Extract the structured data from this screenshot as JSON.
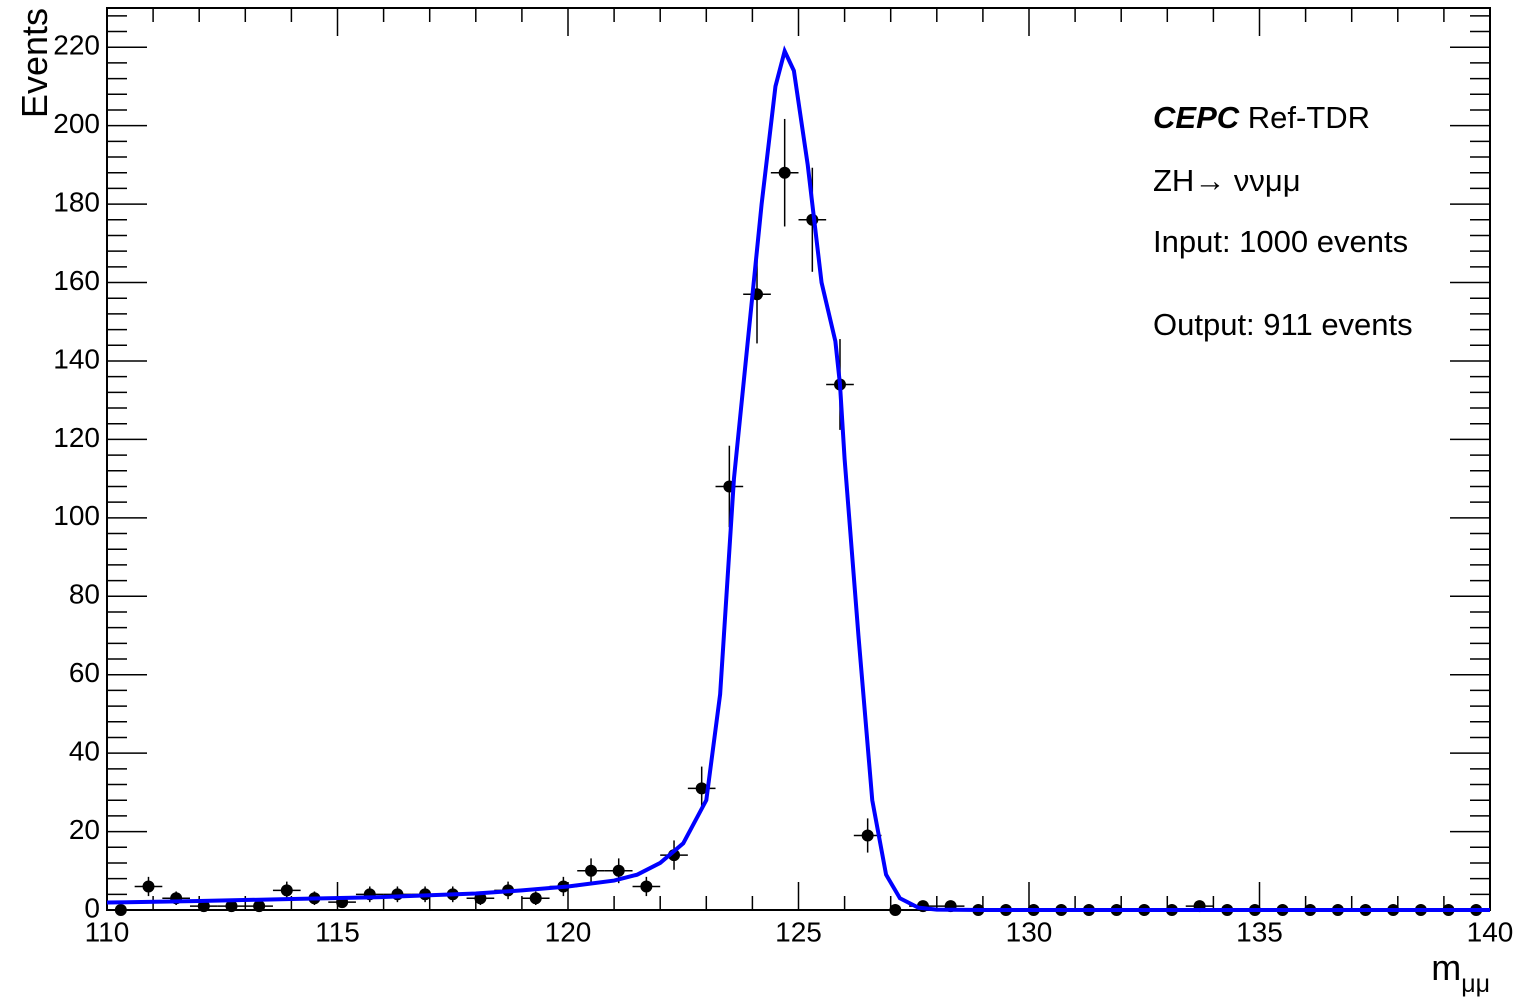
{
  "chart_data": {
    "type": "histogram",
    "bins": [
      110,
      110.6,
      111.2,
      111.8,
      112.4,
      113,
      113.6,
      114.2,
      114.8,
      115.4,
      116,
      116.6,
      117.2,
      117.8,
      118.4,
      119,
      119.6,
      120.2,
      120.8,
      121.4,
      122,
      122.6,
      123.2,
      123.8,
      124.4,
      125,
      125.6,
      126.2,
      126.8,
      127.4,
      128,
      128.6,
      129.2,
      129.8,
      130.4,
      131,
      131.6,
      132.2,
      132.8,
      133.4,
      134,
      134.6,
      135.2,
      135.8,
      136.4,
      137,
      137.6,
      138.2,
      138.8,
      139.4,
      140
    ],
    "values": [
      0,
      6,
      3,
      1,
      1,
      1,
      5,
      3,
      2,
      4,
      4,
      4,
      4,
      3,
      5,
      3,
      6,
      10,
      10,
      6,
      14,
      31,
      108,
      157,
      188,
      176,
      134,
      19,
      0,
      1,
      1,
      0,
      0,
      0,
      0,
      0,
      0,
      0,
      0,
      1,
      0,
      0,
      0,
      0,
      0,
      0,
      0,
      0,
      0,
      0
    ],
    "errors": [
      0,
      2.45,
      1.73,
      1,
      1,
      1,
      2.24,
      1.73,
      1.41,
      2,
      2,
      2,
      2,
      1.73,
      2.24,
      1.73,
      2.45,
      3.16,
      3.16,
      2.45,
      3.74,
      5.57,
      10.39,
      12.53,
      13.71,
      13.27,
      11.58,
      4.36,
      0,
      1,
      1,
      0,
      0,
      0,
      0,
      0,
      0,
      0,
      0,
      1,
      0,
      0,
      0,
      0,
      0,
      0,
      0,
      0,
      0,
      0
    ],
    "color": "#000000",
    "fit": {
      "color": "#0000ff",
      "x": [
        110,
        112,
        114,
        116,
        118,
        119,
        120,
        121,
        121.5,
        122,
        122.5,
        123,
        123.3,
        123.6,
        123.9,
        124.2,
        124.5,
        124.7,
        124.9,
        125.2,
        125.5,
        125.8,
        125.9,
        126.0,
        126.3,
        126.6,
        126.9,
        127.2,
        127.6,
        128,
        129,
        140
      ],
      "y": [
        1.9,
        2.3,
        2.8,
        3.3,
        4.2,
        5,
        6,
        7.5,
        9,
        12,
        17,
        28,
        55,
        110,
        145,
        180,
        210,
        219,
        214,
        190,
        160,
        145,
        134,
        115,
        70,
        28,
        9,
        3,
        0.6,
        0.1,
        0,
        0
      ]
    },
    "xlim": [
      110,
      140
    ],
    "ylim": [
      0,
      230
    ],
    "xticks": [
      110,
      115,
      120,
      125,
      130,
      135,
      140
    ],
    "yticks": [
      0,
      20,
      40,
      60,
      80,
      100,
      120,
      140,
      160,
      180,
      200,
      220
    ],
    "minor_divisions": 5,
    "ylabel": "Events",
    "xlabel": "m",
    "xlabel_sub": "μμ",
    "annotations": [
      "CEPC",
      "Ref-TDR",
      "ZH→ ννμμ",
      "Input: 1000 events",
      "Output: 911 events"
    ]
  }
}
